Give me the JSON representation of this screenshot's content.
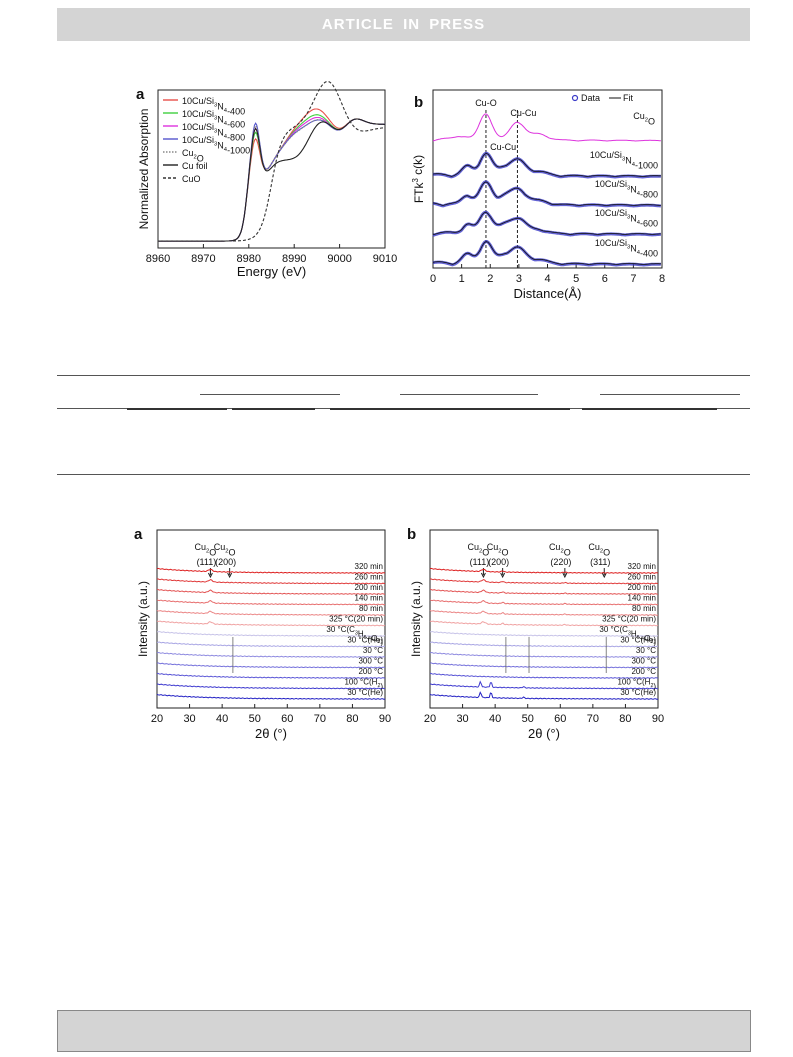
{
  "banner": {
    "text": "ARTICLE IN PRESS"
  },
  "figure_top": {
    "panel_a": {
      "letter": "a"
    },
    "panel_b": {
      "letter": "b"
    }
  },
  "figure_bottom": {
    "panel_a": {
      "letter": "a"
    },
    "panel_b": {
      "letter": "b"
    }
  },
  "chart_data": [
    {
      "type": "line",
      "ylabel": "Normalized Absorption",
      "xlabel": "Energy (eV)",
      "xlim": [
        8960,
        9010
      ],
      "xticks": [
        8960,
        8970,
        8980,
        8990,
        9000,
        9010
      ],
      "legend_position": "top-left",
      "series": [
        {
          "name": "10Cu/Si3N4-400",
          "label_main": "10Cu/Si",
          "label_sub": "3",
          "label_rest": "N",
          "label_sub2": "4",
          "label_end": "-400",
          "color": "#e8504a",
          "style": "solid",
          "preedge": 0.22,
          "peak": 0.78,
          "peak_x": 8994.5
        },
        {
          "name": "10Cu/Si3N4-600",
          "label_main": "10Cu/Si",
          "label_sub": "3",
          "label_rest": "N",
          "label_sub2": "4",
          "label_end": "-600",
          "color": "#3fcf3f",
          "style": "solid",
          "preedge": 0.27,
          "peak": 0.74,
          "peak_x": 8994.2
        },
        {
          "name": "10Cu/Si3N4-800",
          "label_main": "10Cu/Si",
          "label_sub": "3",
          "label_rest": "N",
          "label_sub2": "4",
          "label_end": "-800",
          "color": "#dd33dd",
          "style": "solid",
          "preedge": 0.3,
          "peak": 0.72,
          "peak_x": 8994.0
        },
        {
          "name": "10Cu/Si3N4-1000",
          "label_main": "10Cu/Si",
          "label_sub": "3",
          "label_rest": "N",
          "label_sub2": "4",
          "label_end": "-1000",
          "color": "#5555cc",
          "style": "solid",
          "preedge": 0.34,
          "peak": 0.7,
          "peak_x": 8993.8
        },
        {
          "name": "Cu2O",
          "label_main": "Cu",
          "label_sub": "2",
          "label_rest": "O",
          "label_sub2": "",
          "label_end": "",
          "color": "#888888",
          "style": "dot",
          "preedge": 0.32,
          "peak": 0.7,
          "peak_x": 8993.5
        },
        {
          "name": "Cu foil",
          "label_main": "Cu foil",
          "label_sub": "",
          "label_rest": "",
          "label_sub2": "",
          "label_end": "",
          "color": "#222222",
          "style": "solid",
          "preedge": 0.3,
          "peak": 0.55,
          "peak_x": 8991.0
        },
        {
          "name": "CuO",
          "label_main": "CuO",
          "label_sub": "",
          "label_rest": "",
          "label_sub2": "",
          "label_end": "",
          "color": "#333333",
          "style": "dash",
          "preedge": 0.02,
          "peak": 0.92,
          "peak_x": 8997.5
        }
      ]
    },
    {
      "type": "line",
      "ylabel_main": "FT",
      "ylabel_k": "k",
      "ylabel_sup": "3",
      "ylabel_rest": " c(k)",
      "xlabel": "Distance(Å)",
      "xlim": [
        0,
        8
      ],
      "xticks": [
        0,
        1,
        2,
        3,
        4,
        5,
        6,
        7,
        8
      ],
      "legend": {
        "data": "Data",
        "fit": "Fit"
      },
      "annotations": {
        "cu_o": "Cu-O",
        "cu_cu_top": "Cu-Cu",
        "cu_cu_mid": "Cu-Cu"
      },
      "dashed_lines_x": [
        1.85,
        2.95
      ],
      "traces": [
        {
          "label_main": "Cu",
          "label_sub": "2",
          "label_rest": "O",
          "label_end": "",
          "color": "#dd33dd",
          "kind": "reference"
        },
        {
          "label_main": "10Cu/Si",
          "label_sub": "3",
          "label_rest": "N",
          "label_sub2": "4",
          "label_end": "-1000",
          "color": "#3b3bc8",
          "kind": "sample"
        },
        {
          "label_main": "10Cu/Si",
          "label_sub": "3",
          "label_rest": "N",
          "label_sub2": "4",
          "label_end": "-800",
          "color": "#3b3bc8",
          "kind": "sample"
        },
        {
          "label_main": "10Cu/Si",
          "label_sub": "3",
          "label_rest": "N",
          "label_sub2": "4",
          "label_end": "-600",
          "color": "#3b3bc8",
          "kind": "sample"
        },
        {
          "label_main": "10Cu/Si",
          "label_sub": "3",
          "label_rest": "N",
          "label_sub2": "4",
          "label_end": "-400",
          "color": "#3b3bc8",
          "kind": "sample"
        }
      ]
    },
    {
      "type": "line",
      "ylabel": "Intensity (a.u.)",
      "xlabel": "2θ (°)",
      "xlim": [
        20,
        90
      ],
      "xticks": [
        20,
        30,
        40,
        50,
        60,
        70,
        80,
        90
      ],
      "peak_labels": [
        {
          "top": "Cu",
          "sub": "2",
          "rest": "O",
          "hkl": "(111)",
          "x": 36.4
        },
        {
          "top": "Cu",
          "sub": "2",
          "rest": "O",
          "hkl": "(200)",
          "x": 42.3
        }
      ],
      "traces": [
        {
          "label": "320 min",
          "color": "#dd1f1f"
        },
        {
          "label": "260 min",
          "color": "#e03a3a"
        },
        {
          "label": "200 min",
          "color": "#e35555"
        },
        {
          "label": "140 min",
          "color": "#e76d6d"
        },
        {
          "label": "80 min",
          "color": "#eb8686"
        },
        {
          "label": "325 °C(20 min)",
          "color": "#f0a3a3"
        },
        {
          "label": "30 °C(C",
          "sub1": "3",
          "mid": "H",
          "sub2": "6",
          "end": "+O",
          "sub3": "2",
          "tail": ")",
          "color": "#c7c3e8"
        },
        {
          "label": "30 °C(He)",
          "color": "#a9a6e4"
        },
        {
          "label": "30 °C",
          "color": "#8f8be0"
        },
        {
          "label": "300 °C",
          "color": "#7470db"
        },
        {
          "label": "200 °C",
          "color": "#5a56d6"
        },
        {
          "label": "100 °C(H",
          "sub1": "2",
          "tail": ")",
          "color": "#3e3acf"
        },
        {
          "label": "30 °C(He)",
          "color": "#2321c4"
        }
      ]
    },
    {
      "type": "line",
      "ylabel": "Intensity (a.u.)",
      "xlabel": "2θ (°)",
      "xlim": [
        20,
        90
      ],
      "xticks": [
        20,
        30,
        40,
        50,
        60,
        70,
        80,
        90
      ],
      "peak_labels": [
        {
          "top": "Cu",
          "sub": "2",
          "rest": "O",
          "hkl": "(111)",
          "x": 36.4
        },
        {
          "top": "Cu",
          "sub": "2",
          "rest": "O",
          "hkl": "(200)",
          "x": 42.3
        },
        {
          "top": "Cu",
          "sub": "2",
          "rest": "O",
          "hkl": "(220)",
          "x": 61.4
        },
        {
          "top": "Cu",
          "sub": "2",
          "rest": "O",
          "hkl": "(311)",
          "x": 73.5
        }
      ],
      "traces": [
        {
          "label": "320 min",
          "color": "#dd1f1f"
        },
        {
          "label": "260 min",
          "color": "#e03a3a"
        },
        {
          "label": "200 min",
          "color": "#e35555"
        },
        {
          "label": "140 min",
          "color": "#e76d6d"
        },
        {
          "label": "80 min",
          "color": "#eb8686"
        },
        {
          "label": "325 °C(20 min)",
          "color": "#f0a3a3"
        },
        {
          "label": "30 °C(C",
          "sub1": "3",
          "mid": "H",
          "sub2": "6",
          "end": "+O",
          "sub3": "2",
          "tail": ")",
          "color": "#c7c3e8"
        },
        {
          "label": "30 °C(He)",
          "color": "#a9a6e4"
        },
        {
          "label": "30 °C",
          "color": "#8f8be0"
        },
        {
          "label": "300 °C",
          "color": "#7470db"
        },
        {
          "label": "200 °C",
          "color": "#5a56d6"
        },
        {
          "label": "100 °C(H",
          "sub1": "2",
          "tail": ")",
          "color": "#3e3acf"
        },
        {
          "label": "30 °C(He)",
          "color": "#2321c4"
        }
      ]
    }
  ]
}
